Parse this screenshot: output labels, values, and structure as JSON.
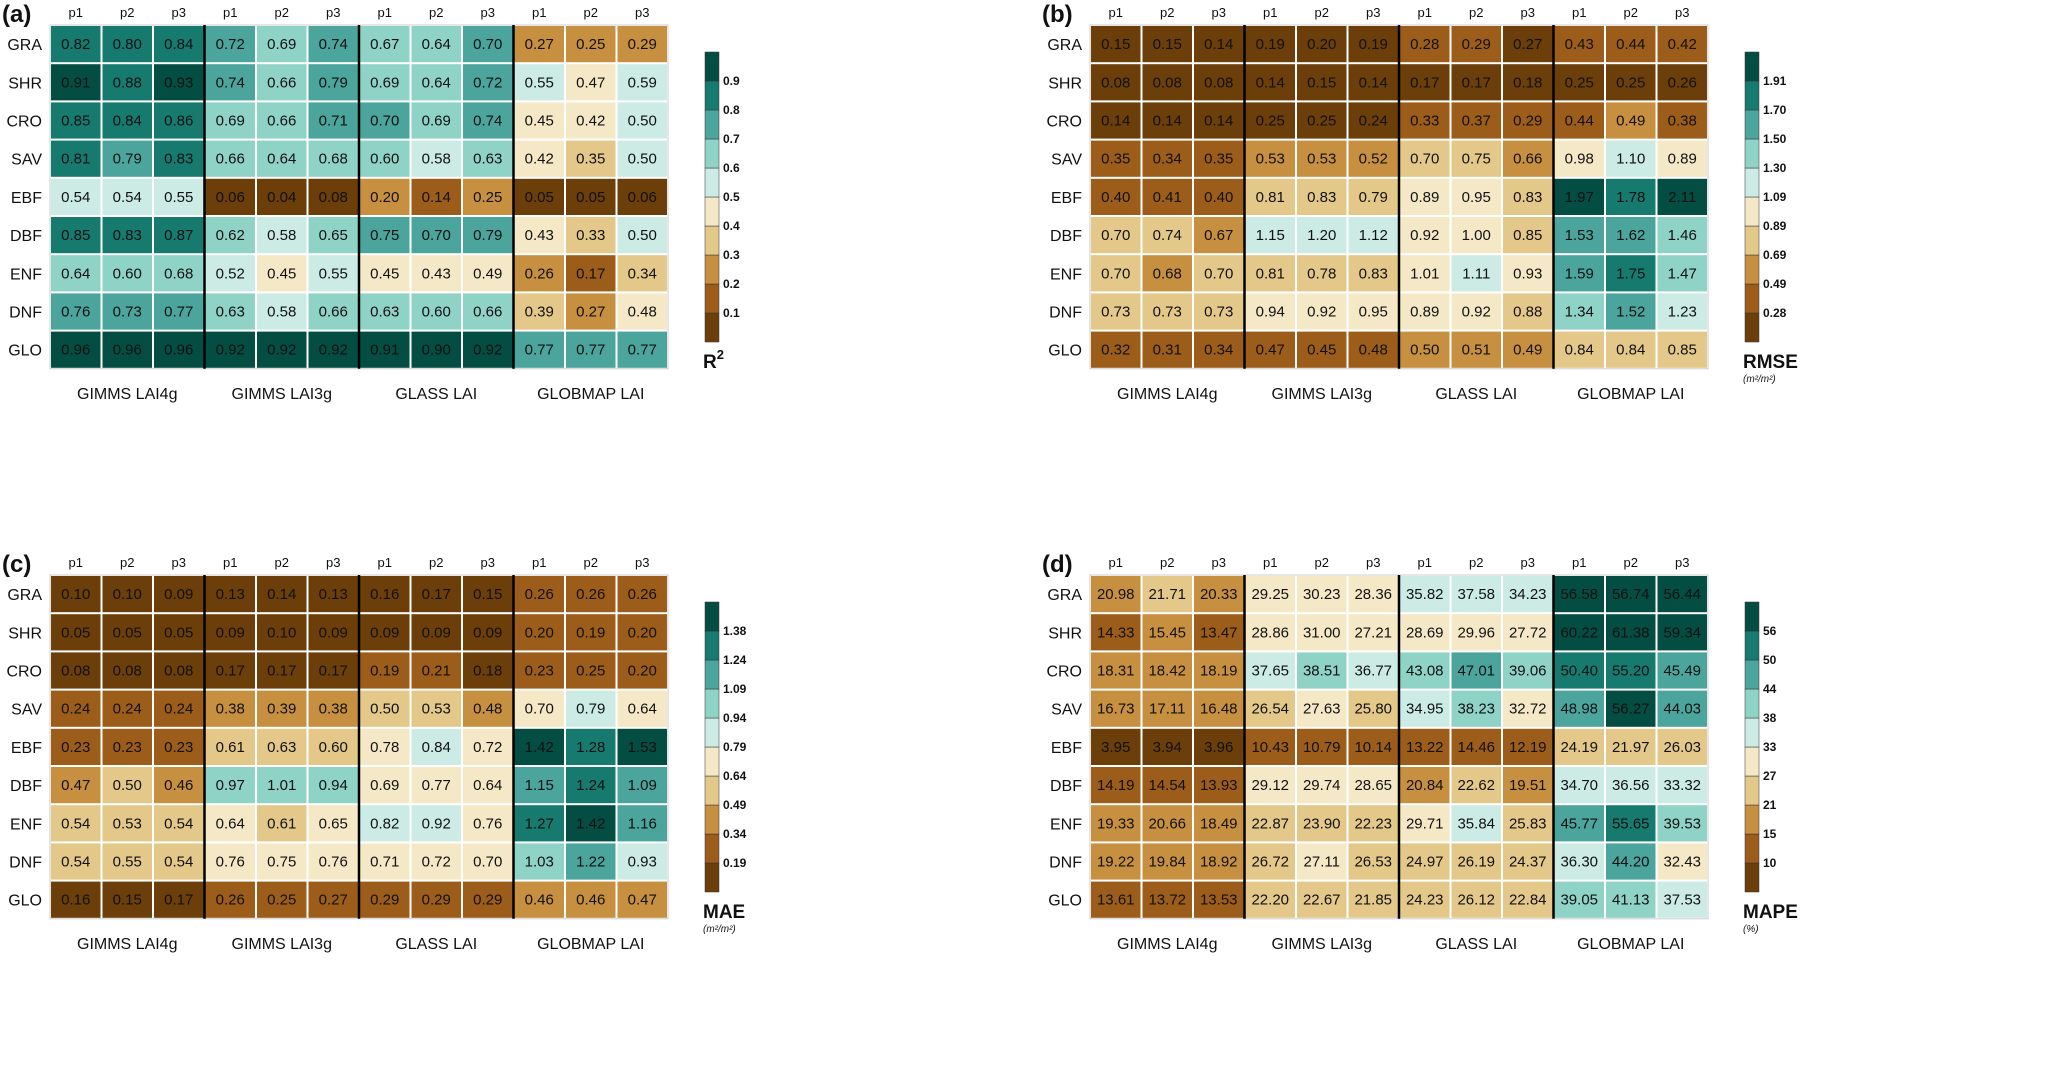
{
  "figure": {
    "palette": [
      "#6b3e0a",
      "#9c5d1a",
      "#c78f40",
      "#e3c889",
      "#f5e8c7",
      "#cbebe4",
      "#8fd3c7",
      "#4ba59c",
      "#177a6f",
      "#044d42"
    ]
  },
  "chart_data": [
    {
      "type": "heatmap",
      "panel_label": "(a)",
      "metric": "R2",
      "colorbar_title": "R",
      "colorbar_title_sup": "2",
      "colorbar_unit": "",
      "colorbar_ticks": [
        "0.1",
        "0.2",
        "0.3",
        "0.4",
        "0.5",
        "0.6",
        "0.7",
        "0.8",
        "0.9"
      ],
      "colorbar_breaks": [
        0.1,
        0.2,
        0.3,
        0.4,
        0.5,
        0.6,
        0.7,
        0.8,
        0.9
      ],
      "rows": [
        "GRA",
        "SHR",
        "CRO",
        "SAV",
        "EBF",
        "DBF",
        "ENF",
        "DNF",
        "GLO"
      ],
      "groups": [
        "GIMMS LAI4g",
        "GIMMS LAI3g",
        "GLASS LAI",
        "GLOBMAP LAI"
      ],
      "periods": [
        "p1",
        "p2",
        "p3"
      ],
      "values": [
        [
          "0.82",
          "0.80",
          "0.84",
          "0.72",
          "0.69",
          "0.74",
          "0.67",
          "0.64",
          "0.70",
          "0.27",
          "0.25",
          "0.29"
        ],
        [
          "0.91",
          "0.88",
          "0.93",
          "0.74",
          "0.66",
          "0.79",
          "0.69",
          "0.64",
          "0.72",
          "0.55",
          "0.47",
          "0.59"
        ],
        [
          "0.85",
          "0.84",
          "0.86",
          "0.69",
          "0.66",
          "0.71",
          "0.70",
          "0.69",
          "0.74",
          "0.45",
          "0.42",
          "0.50"
        ],
        [
          "0.81",
          "0.79",
          "0.83",
          "0.66",
          "0.64",
          "0.68",
          "0.60",
          "0.58",
          "0.63",
          "0.42",
          "0.35",
          "0.50"
        ],
        [
          "0.54",
          "0.54",
          "0.55",
          "0.06",
          "0.04",
          "0.08",
          "0.20",
          "0.14",
          "0.25",
          "0.05",
          "0.05",
          "0.06"
        ],
        [
          "0.85",
          "0.83",
          "0.87",
          "0.62",
          "0.58",
          "0.65",
          "0.75",
          "0.70",
          "0.79",
          "0.43",
          "0.33",
          "0.50"
        ],
        [
          "0.64",
          "0.60",
          "0.68",
          "0.52",
          "0.45",
          "0.55",
          "0.45",
          "0.43",
          "0.49",
          "0.26",
          "0.17",
          "0.34"
        ],
        [
          "0.76",
          "0.73",
          "0.77",
          "0.63",
          "0.58",
          "0.66",
          "0.63",
          "0.60",
          "0.66",
          "0.39",
          "0.27",
          "0.48"
        ],
        [
          "0.96",
          "0.96",
          "0.96",
          "0.92",
          "0.92",
          "0.92",
          "0.91",
          "0.90",
          "0.92",
          "0.77",
          "0.77",
          "0.77"
        ]
      ]
    },
    {
      "type": "heatmap",
      "panel_label": "(b)",
      "metric": "RMSE",
      "colorbar_title": "RMSE",
      "colorbar_title_sup": "",
      "colorbar_unit": "(m²/m²)",
      "colorbar_ticks": [
        "0.28",
        "0.49",
        "0.69",
        "0.89",
        "1.09",
        "1.30",
        "1.50",
        "1.70",
        "1.91"
      ],
      "colorbar_breaks": [
        0.28,
        0.49,
        0.69,
        0.89,
        1.09,
        1.3,
        1.5,
        1.7,
        1.91
      ],
      "rows": [
        "GRA",
        "SHR",
        "CRO",
        "SAV",
        "EBF",
        "DBF",
        "ENF",
        "DNF",
        "GLO"
      ],
      "groups": [
        "GIMMS LAI4g",
        "GIMMS LAI3g",
        "GLASS LAI",
        "GLOBMAP LAI"
      ],
      "periods": [
        "p1",
        "p2",
        "p3"
      ],
      "values": [
        [
          "0.15",
          "0.15",
          "0.14",
          "0.19",
          "0.20",
          "0.19",
          "0.28",
          "0.29",
          "0.27",
          "0.43",
          "0.44",
          "0.42"
        ],
        [
          "0.08",
          "0.08",
          "0.08",
          "0.14",
          "0.15",
          "0.14",
          "0.17",
          "0.17",
          "0.18",
          "0.25",
          "0.25",
          "0.26"
        ],
        [
          "0.14",
          "0.14",
          "0.14",
          "0.25",
          "0.25",
          "0.24",
          "0.33",
          "0.37",
          "0.29",
          "0.44",
          "0.49",
          "0.38"
        ],
        [
          "0.35",
          "0.34",
          "0.35",
          "0.53",
          "0.53",
          "0.52",
          "0.70",
          "0.75",
          "0.66",
          "0.98",
          "1.10",
          "0.89"
        ],
        [
          "0.40",
          "0.41",
          "0.40",
          "0.81",
          "0.83",
          "0.79",
          "0.89",
          "0.95",
          "0.83",
          "1.97",
          "1.78",
          "2.11"
        ],
        [
          "0.70",
          "0.74",
          "0.67",
          "1.15",
          "1.20",
          "1.12",
          "0.92",
          "1.00",
          "0.85",
          "1.53",
          "1.62",
          "1.46"
        ],
        [
          "0.70",
          "0.68",
          "0.70",
          "0.81",
          "0.78",
          "0.83",
          "1.01",
          "1.11",
          "0.93",
          "1.59",
          "1.75",
          "1.47"
        ],
        [
          "0.73",
          "0.73",
          "0.73",
          "0.94",
          "0.92",
          "0.95",
          "0.89",
          "0.92",
          "0.88",
          "1.34",
          "1.52",
          "1.23"
        ],
        [
          "0.32",
          "0.31",
          "0.34",
          "0.47",
          "0.45",
          "0.48",
          "0.50",
          "0.51",
          "0.49",
          "0.84",
          "0.84",
          "0.85"
        ]
      ]
    },
    {
      "type": "heatmap",
      "panel_label": "(c)",
      "metric": "MAE",
      "colorbar_title": "MAE",
      "colorbar_title_sup": "",
      "colorbar_unit": "(m²/m²)",
      "colorbar_ticks": [
        "0.19",
        "0.34",
        "0.49",
        "0.64",
        "0.79",
        "0.94",
        "1.09",
        "1.24",
        "1.38"
      ],
      "colorbar_breaks": [
        0.19,
        0.34,
        0.49,
        0.64,
        0.79,
        0.94,
        1.09,
        1.24,
        1.38
      ],
      "rows": [
        "GRA",
        "SHR",
        "CRO",
        "SAV",
        "EBF",
        "DBF",
        "ENF",
        "DNF",
        "GLO"
      ],
      "groups": [
        "GIMMS LAI4g",
        "GIMMS LAI3g",
        "GLASS LAI",
        "GLOBMAP LAI"
      ],
      "periods": [
        "p1",
        "p2",
        "p3"
      ],
      "values": [
        [
          "0.10",
          "0.10",
          "0.09",
          "0.13",
          "0.14",
          "0.13",
          "0.16",
          "0.17",
          "0.15",
          "0.26",
          "0.26",
          "0.26"
        ],
        [
          "0.05",
          "0.05",
          "0.05",
          "0.09",
          "0.10",
          "0.09",
          "0.09",
          "0.09",
          "0.09",
          "0.20",
          "0.19",
          "0.20"
        ],
        [
          "0.08",
          "0.08",
          "0.08",
          "0.17",
          "0.17",
          "0.17",
          "0.19",
          "0.21",
          "0.18",
          "0.23",
          "0.25",
          "0.20"
        ],
        [
          "0.24",
          "0.24",
          "0.24",
          "0.38",
          "0.39",
          "0.38",
          "0.50",
          "0.53",
          "0.48",
          "0.70",
          "0.79",
          "0.64"
        ],
        [
          "0.23",
          "0.23",
          "0.23",
          "0.61",
          "0.63",
          "0.60",
          "0.78",
          "0.84",
          "0.72",
          "1.42",
          "1.28",
          "1.53"
        ],
        [
          "0.47",
          "0.50",
          "0.46",
          "0.97",
          "1.01",
          "0.94",
          "0.69",
          "0.77",
          "0.64",
          "1.15",
          "1.24",
          "1.09"
        ],
        [
          "0.54",
          "0.53",
          "0.54",
          "0.64",
          "0.61",
          "0.65",
          "0.82",
          "0.92",
          "0.76",
          "1.27",
          "1.42",
          "1.16"
        ],
        [
          "0.54",
          "0.55",
          "0.54",
          "0.76",
          "0.75",
          "0.76",
          "0.71",
          "0.72",
          "0.70",
          "1.03",
          "1.22",
          "0.93"
        ],
        [
          "0.16",
          "0.15",
          "0.17",
          "0.26",
          "0.25",
          "0.27",
          "0.29",
          "0.29",
          "0.29",
          "0.46",
          "0.46",
          "0.47"
        ]
      ]
    },
    {
      "type": "heatmap",
      "panel_label": "(d)",
      "metric": "MAPE",
      "colorbar_title": "MAPE",
      "colorbar_title_sup": "",
      "colorbar_unit": "(%)",
      "colorbar_ticks": [
        "10",
        "15",
        "21",
        "27",
        "33",
        "38",
        "44",
        "50",
        "56"
      ],
      "colorbar_breaks": [
        10,
        15,
        21,
        27,
        33,
        38,
        44,
        50,
        56
      ],
      "rows": [
        "GRA",
        "SHR",
        "CRO",
        "SAV",
        "EBF",
        "DBF",
        "ENF",
        "DNF",
        "GLO"
      ],
      "groups": [
        "GIMMS LAI4g",
        "GIMMS LAI3g",
        "GLASS LAI",
        "GLOBMAP LAI"
      ],
      "periods": [
        "p1",
        "p2",
        "p3"
      ],
      "values": [
        [
          "20.98",
          "21.71",
          "20.33",
          "29.25",
          "30.23",
          "28.36",
          "35.82",
          "37.58",
          "34.23",
          "56.58",
          "56.74",
          "56.44"
        ],
        [
          "14.33",
          "15.45",
          "13.47",
          "28.86",
          "31.00",
          "27.21",
          "28.69",
          "29.96",
          "27.72",
          "60.22",
          "61.38",
          "59.34"
        ],
        [
          "18.31",
          "18.42",
          "18.19",
          "37.65",
          "38.51",
          "36.77",
          "43.08",
          "47.01",
          "39.06",
          "50.40",
          "55.20",
          "45.49"
        ],
        [
          "16.73",
          "17.11",
          "16.48",
          "26.54",
          "27.63",
          "25.80",
          "34.95",
          "38.23",
          "32.72",
          "48.98",
          "56.27",
          "44.03"
        ],
        [
          "3.95",
          "3.94",
          "3.96",
          "10.43",
          "10.79",
          "10.14",
          "13.22",
          "14.46",
          "12.19",
          "24.19",
          "21.97",
          "26.03"
        ],
        [
          "14.19",
          "14.54",
          "13.93",
          "29.12",
          "29.74",
          "28.65",
          "20.84",
          "22.62",
          "19.51",
          "34.70",
          "36.56",
          "33.32"
        ],
        [
          "19.33",
          "20.66",
          "18.49",
          "22.87",
          "23.90",
          "22.23",
          "29.71",
          "35.84",
          "25.83",
          "45.77",
          "55.65",
          "39.53"
        ],
        [
          "19.22",
          "19.84",
          "18.92",
          "26.72",
          "27.11",
          "26.53",
          "24.97",
          "26.19",
          "24.37",
          "36.30",
          "44.20",
          "32.43"
        ],
        [
          "13.61",
          "13.72",
          "13.53",
          "22.20",
          "22.67",
          "21.85",
          "24.23",
          "26.12",
          "22.84",
          "39.05",
          "41.13",
          "37.53"
        ]
      ]
    }
  ]
}
